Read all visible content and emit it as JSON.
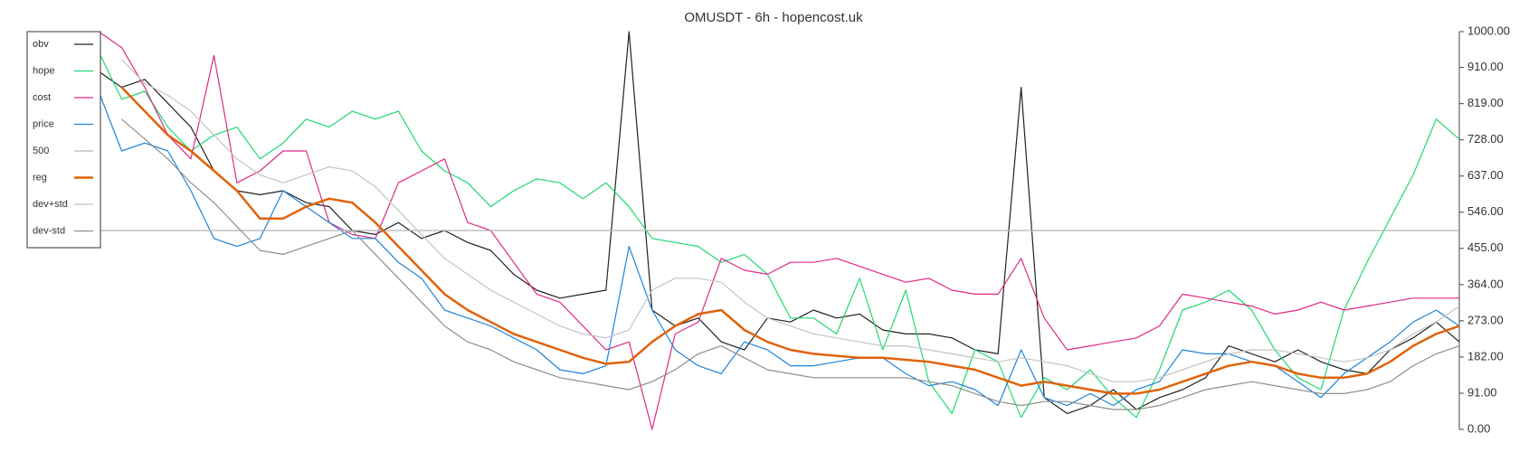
{
  "chart_data": {
    "type": "line",
    "title": "OMUSDT - 6h - hopencost.uk",
    "ylim": [
      0,
      1000
    ],
    "yticks": [
      {
        "value": 0,
        "label": "0.00"
      },
      {
        "value": 91,
        "label": "91.00"
      },
      {
        "value": 182,
        "label": "182.00"
      },
      {
        "value": 273,
        "label": "273.00"
      },
      {
        "value": 364,
        "label": "364.00"
      },
      {
        "value": 455,
        "label": "455.00"
      },
      {
        "value": 546,
        "label": "546.00"
      },
      {
        "value": 637,
        "label": "637.00"
      },
      {
        "value": 728,
        "label": "728.00"
      },
      {
        "value": 819,
        "label": "819.00"
      },
      {
        "value": 910,
        "label": "910.00"
      },
      {
        "value": 1000,
        "label": "1000.00"
      }
    ],
    "legend": "upper left",
    "series": [
      {
        "name": "obv",
        "color": "#222222",
        "values": [
          900,
          860,
          880,
          820,
          760,
          650,
          600,
          590,
          600,
          570,
          560,
          500,
          490,
          520,
          480,
          500,
          470,
          450,
          390,
          350,
          330,
          340,
          350,
          1000,
          300,
          260,
          280,
          220,
          200,
          280,
          270,
          300,
          280,
          290,
          250,
          240,
          240,
          230,
          200,
          190,
          860,
          80,
          40,
          60,
          100,
          50,
          80,
          100,
          130,
          210,
          190,
          170,
          200,
          170,
          150,
          140,
          200,
          230,
          270,
          220
        ]
      },
      {
        "name": "hope",
        "color": "#1fd870",
        "values": [
          950,
          830,
          850,
          760,
          700,
          740,
          760,
          680,
          720,
          780,
          760,
          800,
          780,
          800,
          700,
          650,
          620,
          560,
          600,
          630,
          620,
          580,
          620,
          560,
          480,
          470,
          460,
          420,
          440,
          390,
          280,
          280,
          240,
          380,
          200,
          350,
          120,
          40,
          200,
          170,
          30,
          130,
          100,
          150,
          80,
          30,
          150,
          300,
          320,
          350,
          300,
          200,
          130,
          100,
          300,
          420,
          530,
          640,
          780,
          730
        ]
      },
      {
        "name": "cost",
        "color": "#dd2a86",
        "values": [
          1000,
          960,
          860,
          740,
          680,
          940,
          620,
          650,
          700,
          700,
          520,
          490,
          480,
          620,
          650,
          680,
          520,
          500,
          420,
          340,
          320,
          260,
          200,
          220,
          0,
          240,
          270,
          430,
          400,
          390,
          420,
          420,
          430,
          410,
          390,
          370,
          380,
          350,
          340,
          340,
          430,
          280,
          200,
          210,
          220,
          230,
          260,
          340,
          330,
          320,
          310,
          290,
          300,
          320,
          300,
          310,
          320,
          330,
          330,
          330
        ]
      },
      {
        "name": "price",
        "color": "#1e84dc",
        "values": [
          850,
          700,
          720,
          700,
          600,
          480,
          460,
          480,
          600,
          560,
          520,
          480,
          480,
          420,
          380,
          300,
          280,
          260,
          230,
          200,
          150,
          140,
          160,
          460,
          300,
          200,
          160,
          140,
          220,
          200,
          160,
          160,
          170,
          180,
          180,
          140,
          110,
          120,
          100,
          60,
          200,
          80,
          60,
          90,
          60,
          100,
          120,
          200,
          190,
          190,
          170,
          160,
          120,
          80,
          140,
          180,
          220,
          270,
          300,
          260
        ]
      },
      {
        "name": "500",
        "color": "#b5b5b5",
        "values": [
          500,
          500,
          500,
          500,
          500,
          500,
          500,
          500,
          500,
          500,
          500,
          500,
          500,
          500,
          500,
          500,
          500,
          500,
          500,
          500,
          500,
          500,
          500,
          500,
          500,
          500,
          500,
          500,
          500,
          500,
          500,
          500,
          500,
          500,
          500,
          500,
          500,
          500,
          500,
          500,
          500,
          500,
          500,
          500,
          500,
          500,
          500,
          500,
          500,
          500,
          500,
          500,
          500,
          500,
          500,
          500,
          500,
          500,
          500,
          500
        ]
      },
      {
        "name": "reg",
        "color": "#e0620c",
        "width": 2.5,
        "values": [
          null,
          860,
          800,
          740,
          700,
          650,
          600,
          530,
          530,
          560,
          580,
          570,
          520,
          460,
          400,
          340,
          300,
          270,
          240,
          220,
          200,
          180,
          165,
          170,
          220,
          260,
          290,
          300,
          250,
          220,
          200,
          190,
          185,
          180,
          180,
          175,
          170,
          160,
          150,
          130,
          110,
          120,
          110,
          100,
          90,
          90,
          100,
          120,
          140,
          160,
          170,
          160,
          140,
          130,
          130,
          140,
          170,
          210,
          240,
          260
        ]
      },
      {
        "name": "dev+std",
        "color": "#c4c4c4",
        "values": [
          null,
          930,
          870,
          840,
          800,
          740,
          680,
          640,
          620,
          640,
          660,
          650,
          610,
          550,
          490,
          430,
          390,
          350,
          320,
          290,
          260,
          240,
          230,
          250,
          350,
          380,
          380,
          370,
          320,
          280,
          260,
          240,
          230,
          220,
          210,
          210,
          200,
          190,
          180,
          170,
          180,
          170,
          160,
          140,
          120,
          120,
          130,
          150,
          170,
          190,
          200,
          200,
          190,
          180,
          170,
          180,
          200,
          240,
          270,
          310
        ]
      },
      {
        "name": "dev-std",
        "color": "#8e8e8e",
        "values": [
          null,
          780,
          730,
          680,
          620,
          570,
          510,
          450,
          440,
          460,
          480,
          500,
          440,
          380,
          320,
          260,
          220,
          200,
          170,
          150,
          130,
          120,
          110,
          100,
          120,
          150,
          190,
          210,
          180,
          150,
          140,
          130,
          130,
          130,
          130,
          130,
          120,
          110,
          90,
          70,
          60,
          70,
          70,
          60,
          50,
          50,
          60,
          80,
          100,
          110,
          120,
          110,
          100,
          90,
          90,
          100,
          120,
          160,
          190,
          210
        ]
      }
    ]
  }
}
